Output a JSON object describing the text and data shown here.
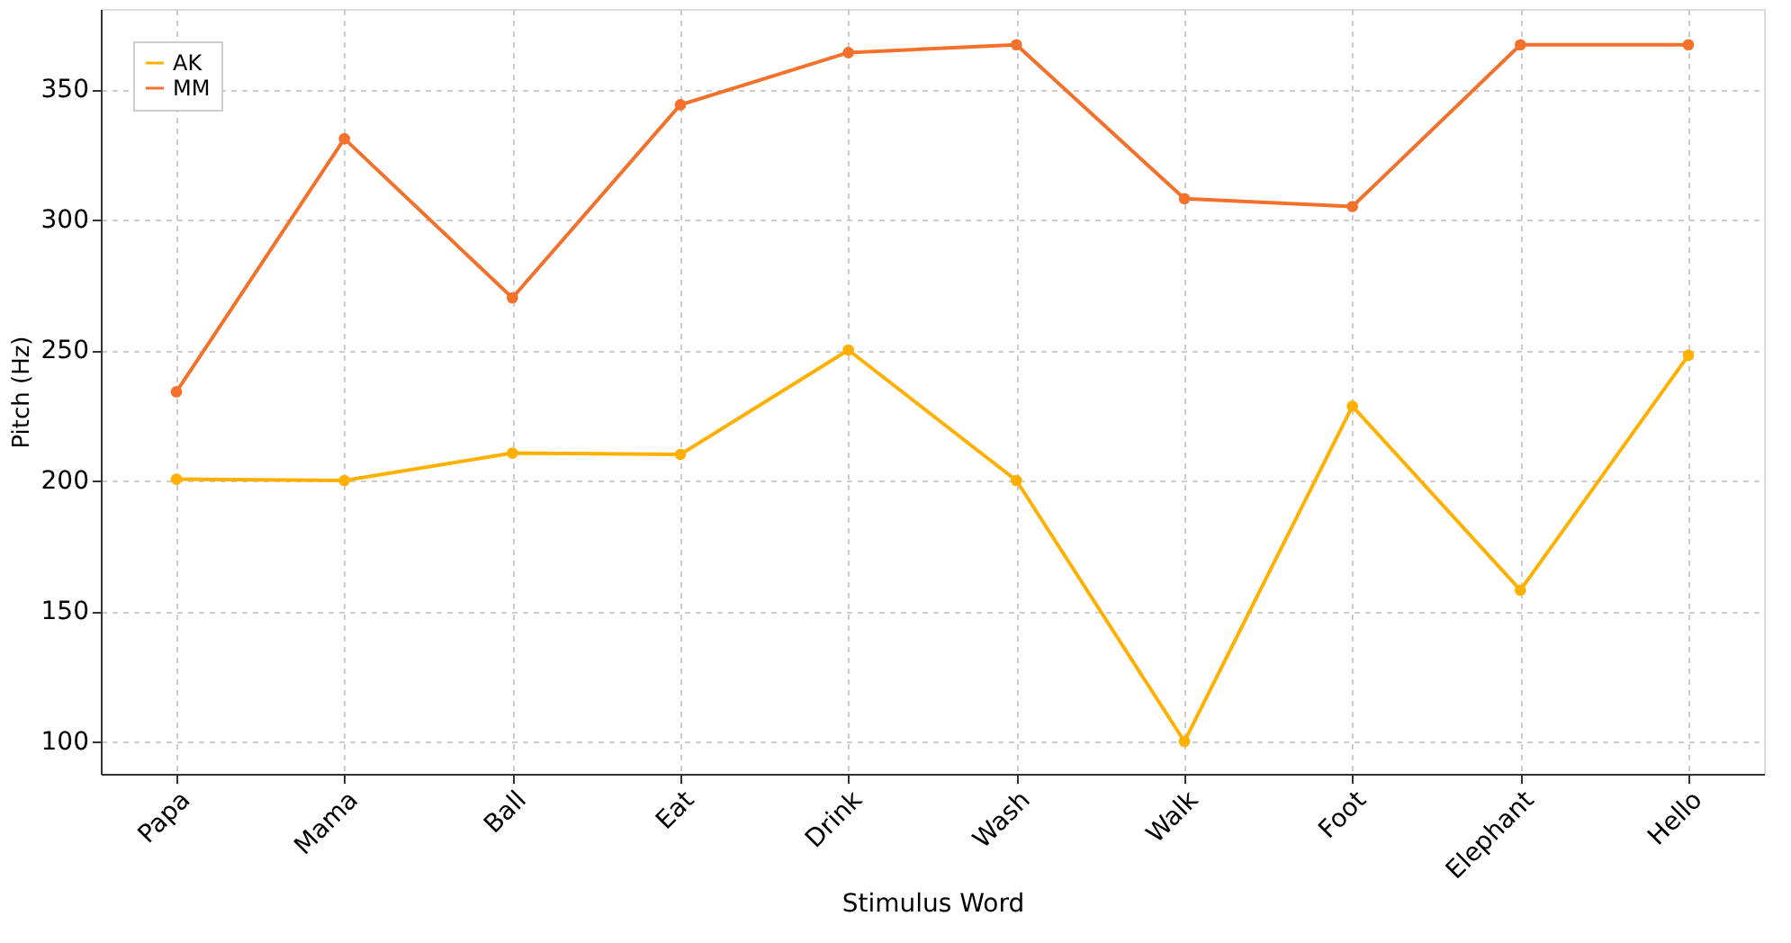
{
  "chart_data": {
    "type": "line",
    "xlabel": "Stimulus Word",
    "ylabel": "Pitch (Hz)",
    "categories": [
      "Papa",
      "Mama",
      "Ball",
      "Eat",
      "Drink",
      "Wash",
      "Walk",
      "Foot",
      "Elephant",
      "Hello"
    ],
    "series": [
      {
        "name": "AK",
        "color": "#ffb000",
        "values": [
          200.5,
          200,
          210.5,
          210,
          250,
          200,
          100,
          228.5,
          158,
          248
        ]
      },
      {
        "name": "MM",
        "color": "#f4712b",
        "values": [
          234,
          331,
          270,
          344,
          364,
          367,
          308,
          305,
          367,
          367
        ]
      }
    ],
    "ylim": [
      87.6,
      380.7
    ],
    "yticks": [
      100,
      150,
      200,
      250,
      300,
      350
    ],
    "grid": true,
    "legend": "top left",
    "marker": "circle",
    "line_style": "solid"
  }
}
